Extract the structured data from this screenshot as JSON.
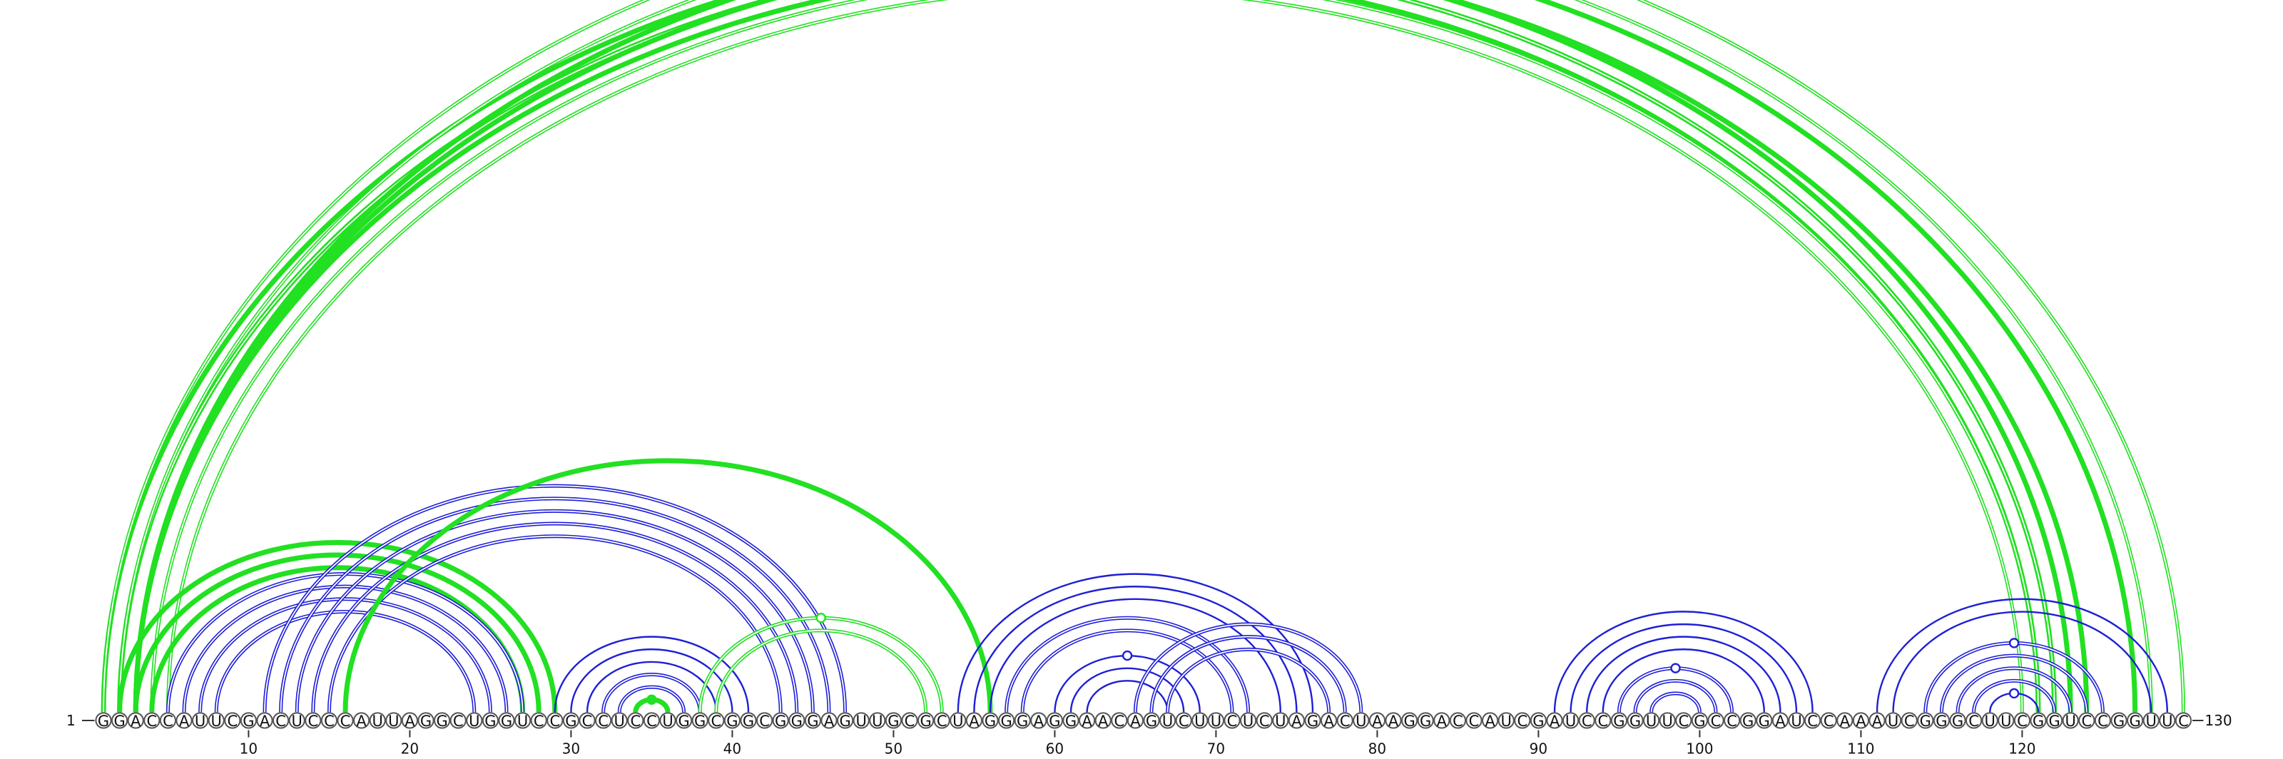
{
  "sequence": "GGACCAUUCGACUCCCAUUAGGCUGGUCCGCCUCCUGGCGGCGGGAGUUGCGCUAGGGAGGAACAGUCUUCUCUAGACUAAGGACCAUCGAUCCGGUUCGCCGGAUCCAAAUCGGGCUUCGGUCCGGUUC",
  "start_label": "1",
  "end_label": "130",
  "ticks": [
    10,
    20,
    30,
    40,
    50,
    60,
    70,
    80,
    90,
    100,
    110,
    120
  ],
  "colors": {
    "blue": "#1f1fd6",
    "green": "#22e022"
  },
  "helices": [
    {
      "color": "green",
      "i": 1,
      "j": 123,
      "n": 3,
      "pattern": "thick"
    },
    {
      "color": "green",
      "i": 4,
      "j": 121,
      "n": 2,
      "pattern": "double"
    },
    {
      "color": "green",
      "i": 2,
      "j": 122,
      "n": 1,
      "pattern": "double"
    },
    {
      "color": "green",
      "i": 3,
      "j": 124,
      "n": 1,
      "pattern": "thick"
    },
    {
      "color": "green",
      "i": 1,
      "j": 130,
      "n": 1,
      "pattern": "double",
      "marker": "open"
    },
    {
      "color": "green",
      "i": 2,
      "j": 128,
      "n": 1,
      "pattern": "double"
    },
    {
      "color": "green",
      "i": 3,
      "j": 127,
      "n": 1,
      "pattern": "thick"
    },
    {
      "color": "green",
      "i": 2,
      "j": 29,
      "n": 3,
      "pattern": "thick"
    },
    {
      "color": "blue",
      "i": 5,
      "j": 27,
      "n": 4,
      "pattern": "double"
    },
    {
      "color": "blue",
      "i": 11,
      "j": 47,
      "n": 5,
      "pattern": "double"
    },
    {
      "color": "green",
      "i": 16,
      "j": 56,
      "n": 1,
      "pattern": "thick"
    },
    {
      "color": "blue",
      "i": 29,
      "j": 41,
      "n": 3,
      "pattern": "single"
    },
    {
      "color": "blue",
      "i": 32,
      "j": 38,
      "n": 2,
      "pattern": "double"
    },
    {
      "color": "green",
      "i": 34,
      "j": 36,
      "n": 1,
      "pattern": "thick",
      "marker": "filled"
    },
    {
      "color": "green",
      "i": 38,
      "j": 53,
      "n": 2,
      "pattern": "double",
      "marker": "open"
    },
    {
      "color": "blue",
      "i": 54,
      "j": 76,
      "n": 3,
      "pattern": "single"
    },
    {
      "color": "blue",
      "i": 57,
      "j": 72,
      "n": 2,
      "pattern": "double"
    },
    {
      "color": "blue",
      "i": 60,
      "j": 69,
      "n": 3,
      "pattern": "single",
      "marker": "open"
    },
    {
      "color": "blue",
      "i": 65,
      "j": 79,
      "n": 3,
      "pattern": "double"
    },
    {
      "color": "blue",
      "i": 91,
      "j": 107,
      "n": 4,
      "pattern": "single"
    },
    {
      "color": "blue",
      "i": 95,
      "j": 102,
      "n": 3,
      "pattern": "double",
      "marker": "open"
    },
    {
      "color": "blue",
      "i": 111,
      "j": 129,
      "n": 2,
      "pattern": "single"
    },
    {
      "color": "blue",
      "i": 114,
      "j": 125,
      "n": 4,
      "pattern": "double",
      "marker": "open"
    },
    {
      "color": "blue",
      "i": 118,
      "j": 121,
      "n": 1,
      "pattern": "single",
      "marker": "open"
    }
  ]
}
